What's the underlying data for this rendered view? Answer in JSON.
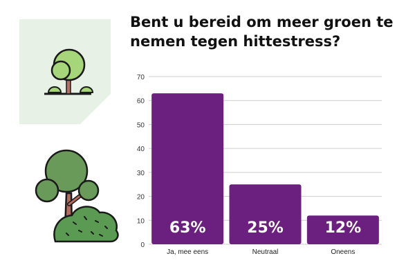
{
  "title": "Bent u bereid om meer groen te nemen tegen hittestress?",
  "icons": {
    "small": "tree-icon",
    "large": "tree-with-bush-illustration"
  },
  "colors": {
    "bar": "#6b1f7f",
    "grid": "#cccccc",
    "card": "#e8f1e5",
    "bar_label": "#ffffff"
  },
  "chart_data": {
    "type": "bar",
    "title": "Bent u bereid om meer groen te nemen tegen hittestress?",
    "categories": [
      "Ja, mee eens",
      "Neutraal",
      "Oneens"
    ],
    "values": [
      63,
      25,
      12
    ],
    "data_labels": [
      "63%",
      "25%",
      "12%"
    ],
    "ylim": [
      0,
      70
    ],
    "yticks": [
      0,
      10,
      20,
      30,
      40,
      50,
      60,
      70
    ],
    "grid": true,
    "xlabel": "",
    "ylabel": ""
  }
}
